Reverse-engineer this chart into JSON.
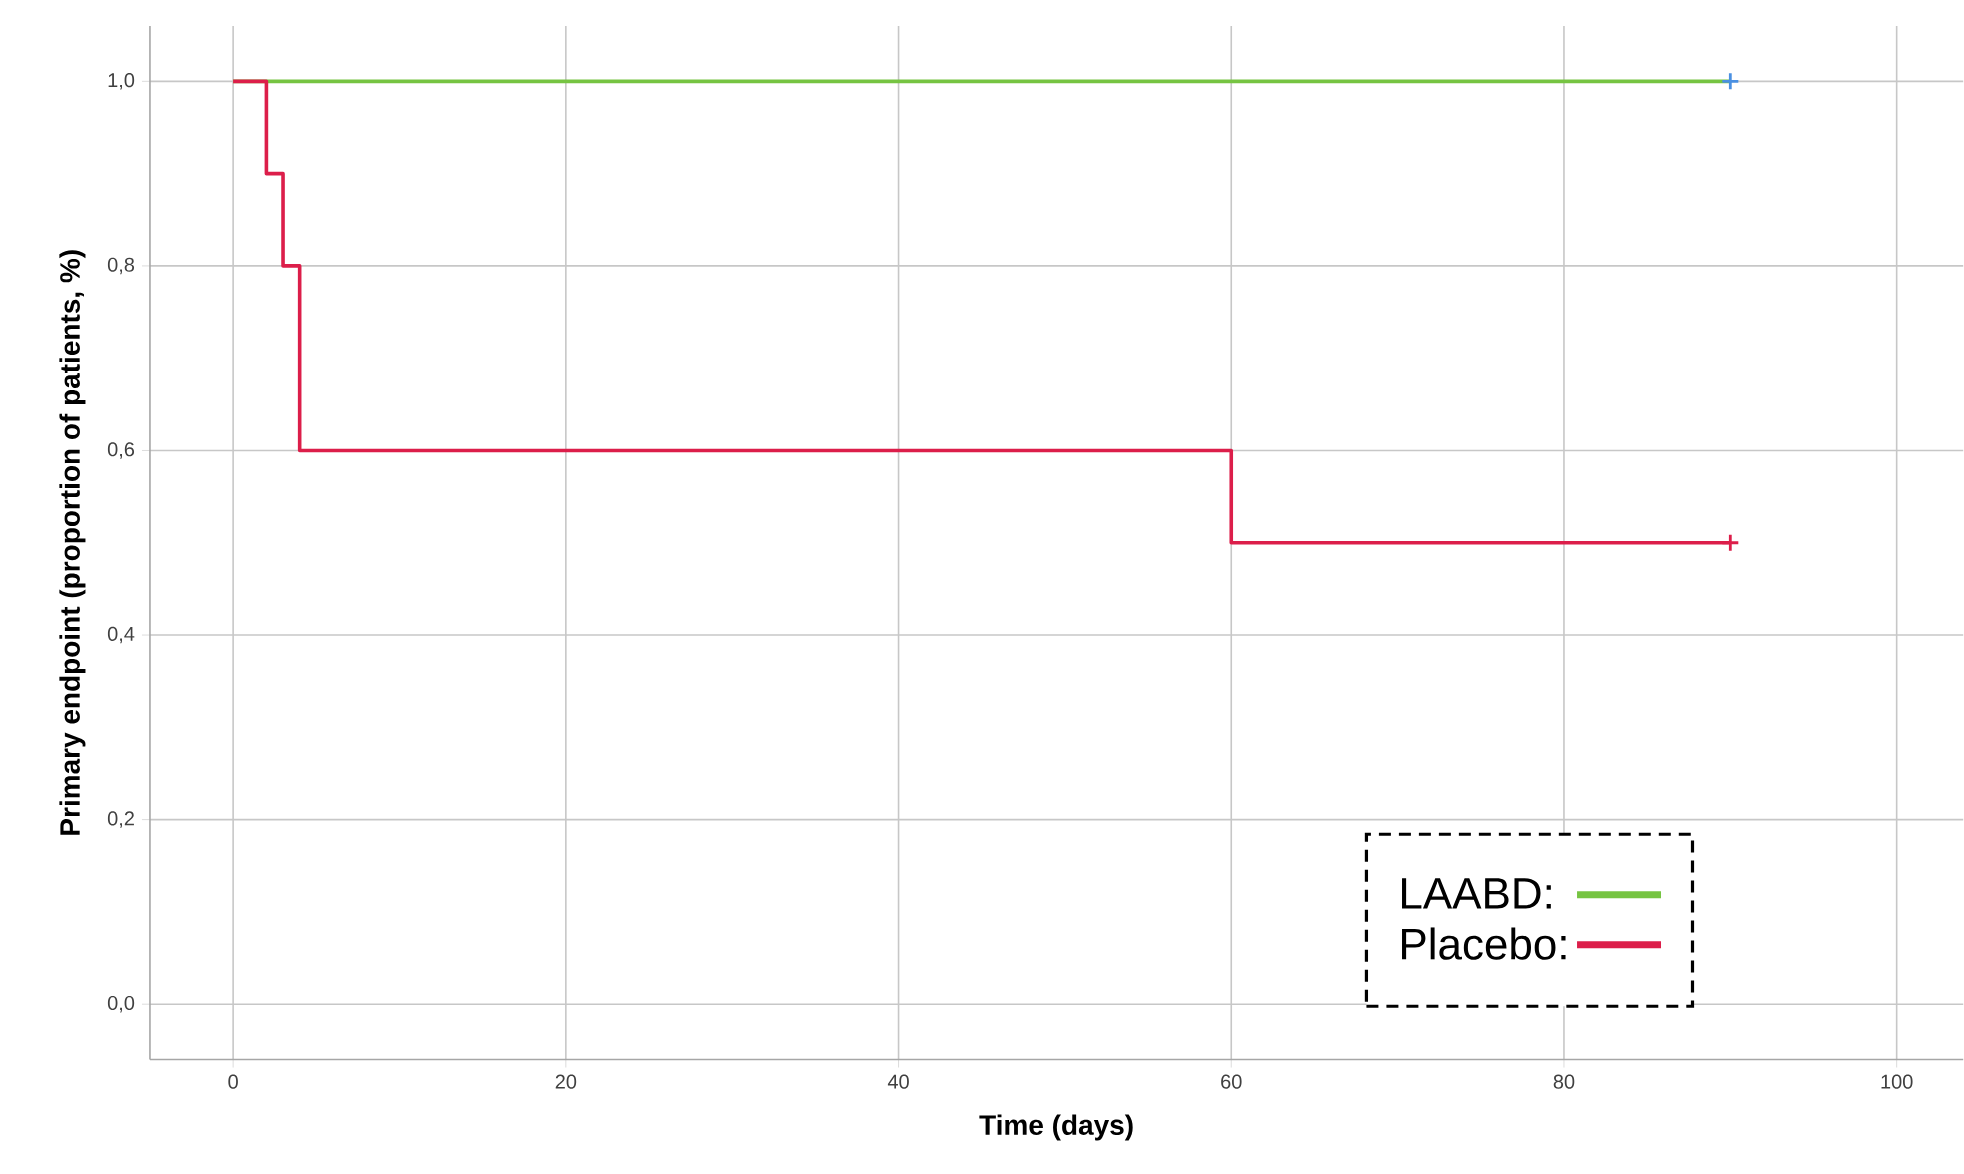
{
  "chart_data": {
    "type": "step",
    "xlabel": "Time (days)",
    "ylabel": "Primary endpoint (proportion of patients, %)",
    "xlim": [
      -5,
      104
    ],
    "xticks": [
      0,
      20,
      40,
      60,
      80,
      100
    ],
    "ylim": [
      -0.06,
      1.06
    ],
    "yticks": [
      {
        "value": 0,
        "label": "0,0"
      },
      {
        "value": 0.2,
        "label": "0,2"
      },
      {
        "value": 0.4,
        "label": "0,4"
      },
      {
        "value": 0.6,
        "label": "0,6"
      },
      {
        "value": 0.8,
        "label": "0,8"
      },
      {
        "value": 1,
        "label": "1,0"
      }
    ],
    "grid": true,
    "legend": "bottom right",
    "series": [
      {
        "name": "LAABD:",
        "color": "#76c442",
        "x": [
          0,
          90
        ],
        "values": [
          1,
          1
        ]
      },
      {
        "name": "Placebo:",
        "color": "#dc1e4a",
        "x": [
          0,
          2,
          3,
          4,
          60,
          90
        ],
        "values": [
          1,
          0.9,
          0.8,
          0.6,
          0.5,
          0.5
        ]
      },
      {
        "type": "scatter",
        "marker": "cross",
        "color": "#4a90e2",
        "x": [
          90
        ],
        "values": [
          1
        ]
      },
      {
        "type": "scatter",
        "marker": "cross",
        "color": "#dc1e4a",
        "x": [
          90
        ],
        "values": [
          0.5
        ]
      }
    ]
  }
}
